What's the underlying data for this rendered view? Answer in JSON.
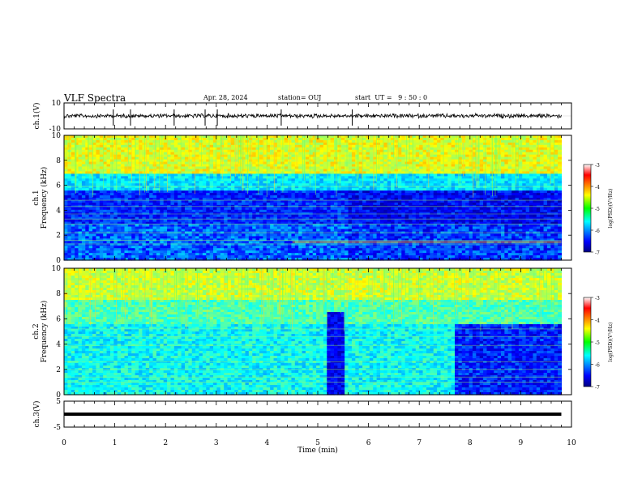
{
  "header": {
    "title": "VLF Spectra",
    "date": "Apr. 28, 2024",
    "station": "station= OUJ",
    "start": "start  UT =   9 : 50 : 0"
  },
  "chart_data": [
    {
      "type": "line",
      "panel": "ch1-waveform",
      "ylabel": "ch.1(V)",
      "yticks": [
        "10",
        "-10"
      ],
      "ylim": [
        -10,
        10
      ],
      "xlim": [
        0,
        10
      ],
      "x": [
        0,
        9.8
      ],
      "values": [
        0,
        0
      ],
      "color": "#000000"
    },
    {
      "type": "heatmap",
      "panel": "ch1-spectrogram",
      "ylabel_top": "ch.1",
      "ylabel": "Frequency (kHz)",
      "yticks": [
        "0",
        "2",
        "4",
        "6",
        "8",
        "10"
      ],
      "ylim": [
        0,
        10
      ],
      "xlim": [
        0,
        9.8
      ],
      "colorbar": {
        "label": "log(PSD)(V²/Hz)",
        "ticks": [
          "-3",
          "-4",
          "-5",
          "-6",
          "-7"
        ],
        "range": [
          -7,
          -3
        ]
      }
    },
    {
      "type": "heatmap",
      "panel": "ch2-spectrogram",
      "ylabel_top": "ch.2",
      "ylabel": "Frequency (kHz)",
      "yticks": [
        "0",
        "2",
        "4",
        "6",
        "8",
        "10"
      ],
      "ylim": [
        0,
        10
      ],
      "xlim": [
        0,
        9.8
      ],
      "colorbar": {
        "label": "log(PSD)(V²/Hz)",
        "ticks": [
          "-3",
          "-4",
          "-5",
          "-6",
          "-7"
        ],
        "range": [
          -7,
          -3
        ]
      }
    },
    {
      "type": "line",
      "panel": "ch3-waveform",
      "ylabel": "ch.3(V)",
      "yticks": [
        "5",
        "-5"
      ],
      "ylim": [
        -5,
        5
      ],
      "xlim": [
        0,
        10
      ],
      "x": [
        0,
        9.8
      ],
      "values": [
        0,
        0
      ],
      "color": "#000000"
    }
  ],
  "x_axis": {
    "label": "Time (min)",
    "ticks": [
      "0",
      "1",
      "2",
      "3",
      "4",
      "5",
      "6",
      "7",
      "8",
      "9",
      "10"
    ],
    "range": [
      0,
      10
    ]
  }
}
